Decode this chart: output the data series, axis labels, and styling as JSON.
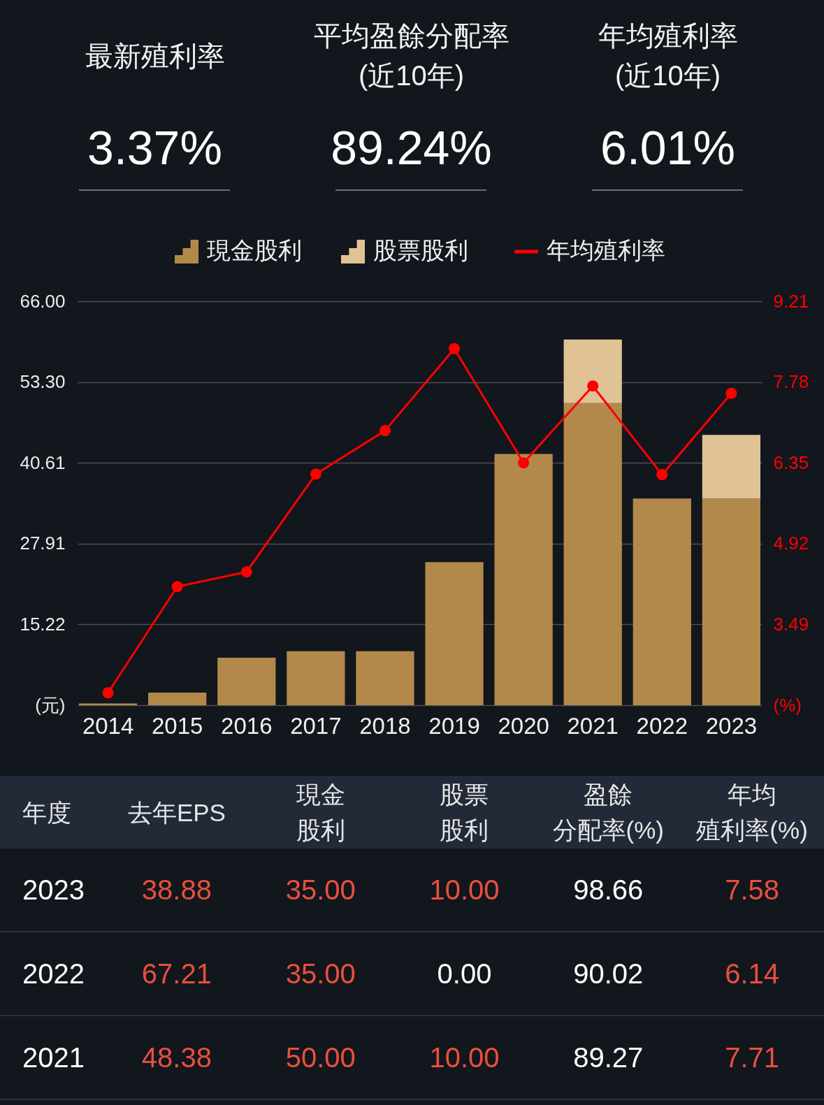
{
  "chart_data": [
    {
      "type": "other",
      "categories": [
        "最新殖利率",
        "平均盈餘分配率\n(近10年)",
        "年均殖利率\n(近10年)"
      ],
      "values": [
        3.37,
        89.24,
        6.01
      ],
      "value_labels": [
        "3.37%",
        "89.24%",
        "6.01%"
      ]
    },
    {
      "type": "bar",
      "stacked": true,
      "categories": [
        "2014",
        "2015",
        "2016",
        "2017",
        "2018",
        "2019",
        "2020",
        "2021",
        "2022",
        "2023"
      ],
      "series": [
        {
          "name": "現金股利",
          "type": "bar",
          "color": "#b3894b",
          "values": [
            2.8,
            4.5,
            10,
            11,
            11,
            25,
            42,
            50,
            35,
            35
          ]
        },
        {
          "name": "股票股利",
          "type": "bar",
          "color": "#e0c394",
          "values": [
            null,
            null,
            null,
            null,
            null,
            null,
            null,
            10,
            null,
            10
          ]
        },
        {
          "name": "年均殖利率",
          "type": "line",
          "axis": "y2",
          "color": "#ff0000",
          "values": [
            2.28,
            4.16,
            4.42,
            6.15,
            6.92,
            8.37,
            6.35,
            7.71,
            6.14,
            7.58
          ]
        }
      ],
      "ylim": [
        2.52,
        66
      ],
      "yticks": [
        {
          "value": 2.52,
          "label": "(元)"
        },
        15.22,
        27.91,
        40.61,
        {
          "value": 53.3,
          "label": "53.30"
        },
        {
          "value": 66,
          "label": "66.00"
        }
      ],
      "y2lim": [
        2.06,
        9.21
      ],
      "y2ticks": [
        {
          "value": 2.06,
          "label": "(%)"
        },
        3.49,
        4.92,
        6.35,
        7.78,
        9.21
      ],
      "grid": "y",
      "legend": "top",
      "marker": "circle",
      "line_style": "solid"
    },
    {
      "type": "other",
      "ylabel": "年度",
      "categories": [
        "去年EPS",
        "現金股利",
        "股票股利",
        "盈餘分配率(%)",
        "年均殖利率(%)"
      ],
      "y_categories": [
        "2023",
        "2022",
        "2021"
      ],
      "cell_labels": [
        [
          "38.88",
          "35.00",
          "10.00",
          "98.66",
          "7.58"
        ],
        [
          "67.21",
          "35.00",
          "0.00",
          "90.02",
          "6.14"
        ],
        [
          "48.38",
          "50.00",
          "10.00",
          "89.27",
          "7.71"
        ]
      ],
      "colors": [
        [
          "#ea4f3d",
          "#ea4f3d",
          "#ea4f3d",
          "#ffffff",
          "#ea4f3d"
        ],
        [
          "#ea4f3d",
          "#ea4f3d",
          "#ffffff",
          "#ffffff",
          "#ea4f3d"
        ],
        [
          "#ea4f3d",
          "#ea4f3d",
          "#ea4f3d",
          "#ffffff",
          "#ea4f3d"
        ]
      ]
    }
  ]
}
